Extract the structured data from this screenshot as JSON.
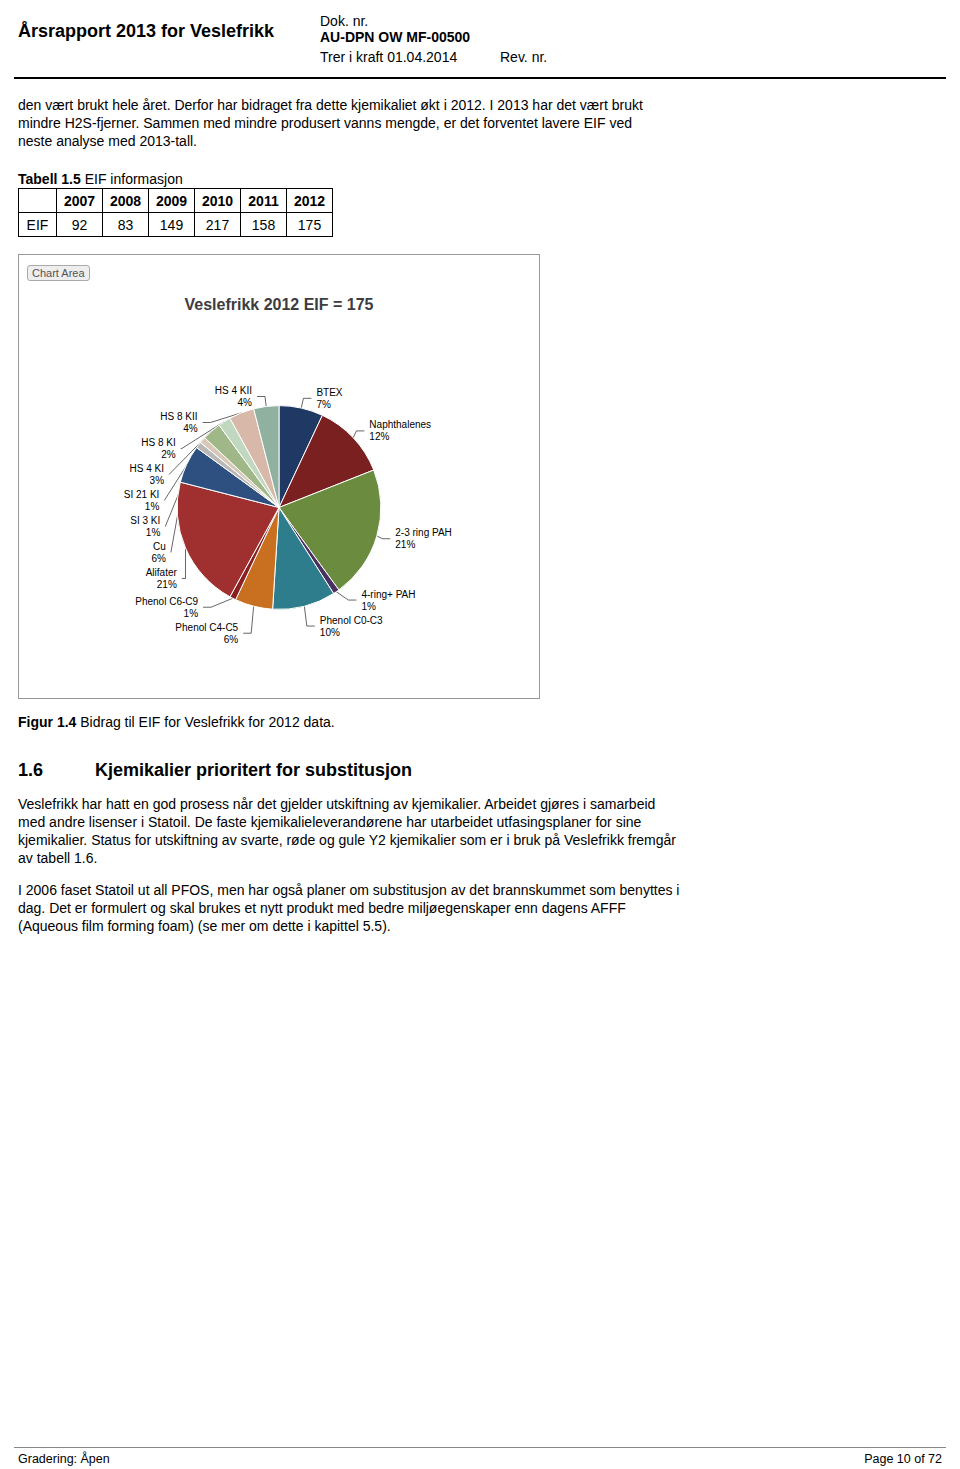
{
  "chart_data": {
    "type": "pie",
    "title": "Veslefrikk 2012 EIF = 175",
    "categories": [
      "BTEX",
      "Naphthalenes",
      "2-3 ring PAH",
      "4-ring+ PAH",
      "Phenol C0-C3",
      "Phenol C4-C5",
      "Phenol C6-C9",
      "Alifater",
      "Cu",
      "SI 3 KI",
      "SI 21 KI",
      "HS 4 KI",
      "HS 8 KI",
      "HS 8 KII",
      "HS 4 KII"
    ],
    "values": [
      7,
      12,
      21,
      1,
      10,
      6,
      1,
      21,
      6,
      1,
      1,
      3,
      2,
      4,
      4
    ],
    "value_labels": [
      "7%",
      "12%",
      "21%",
      "1%",
      "10%",
      "6%",
      "1%",
      "21%",
      "6%",
      "1%",
      "1%",
      "3%",
      "2%",
      "4%",
      "4%"
    ],
    "colors": [
      "#1f3864",
      "#7b2020",
      "#6b8c3e",
      "#4a3060",
      "#2e7d8c",
      "#c87020",
      "#8b2020",
      "#a03030",
      "#2e5080",
      "#b8b8b8",
      "#d8c8b8",
      "#a0b888",
      "#c0d8c0",
      "#d8b8a8",
      "#90b0a0"
    ],
    "data_labels": true
  },
  "page": {
    "page_title": "Årsrapport 2013 for Veslefrikk",
    "doc_nr_label": "Dok. nr.",
    "doc_nr_value": "AU-DPN OW MF-00500",
    "trer_label": "Trer i kraft 01.04.2014",
    "rev_label": "Rev. nr.",
    "body_text1": "den vært brukt hele året. Derfor har bidraget fra dette kjemikaliet økt i 2012. I 2013 har det vært brukt\nmindre H2S-fjerner. Sammen med mindre produsert vanns mengde, er det forventet lavere EIF ved\nneste analyse med 2013-tall.",
    "table_title_bold": "Tabell 1.5",
    "table_title_normal": " EIF informasjon",
    "table_headers": [
      "",
      "2007",
      "2008",
      "2009",
      "2010",
      "2011",
      "2012"
    ],
    "table_row": [
      "EIF",
      "92",
      "83",
      "149",
      "217",
      "158",
      "175"
    ],
    "chart_area_label": "Chart Area",
    "fig_caption_bold": "Figur 1.4",
    "fig_caption_normal": " Bidrag til EIF for Veslefrikk for 2012 data.",
    "section_number": "1.6",
    "section_title": "Kjemikalier prioritert for substitusjon",
    "section_body1": "Veslefrikk har hatt en god prosess når det gjelder utskiftning av kjemikalier. Arbeidet gjøres i samarbeid\nmed andre lisenser i Statoil. De faste kjemikalieleverandørene har utarbeidet utfasingsplaner for sine\nkjemikalier. Status for utskiftning av svarte, røde og gule Y2 kjemikalier som er i bruk på Veslefrikk fremgår\nav tabell 1.6.",
    "section_body2": "I 2006 faset Statoil ut all PFOS, men har også planer om substitusjon av det brannskummet som benyttes i\ndag. Det er formulert og skal brukes et nytt produkt med bedre miljøegenskaper enn dagens AFFF\n(Aqueous film forming foam) (se mer om dette i kapittel 5.5).",
    "footer_left": "Gradering: Åpen",
    "footer_right": "Page 10 of 72"
  }
}
